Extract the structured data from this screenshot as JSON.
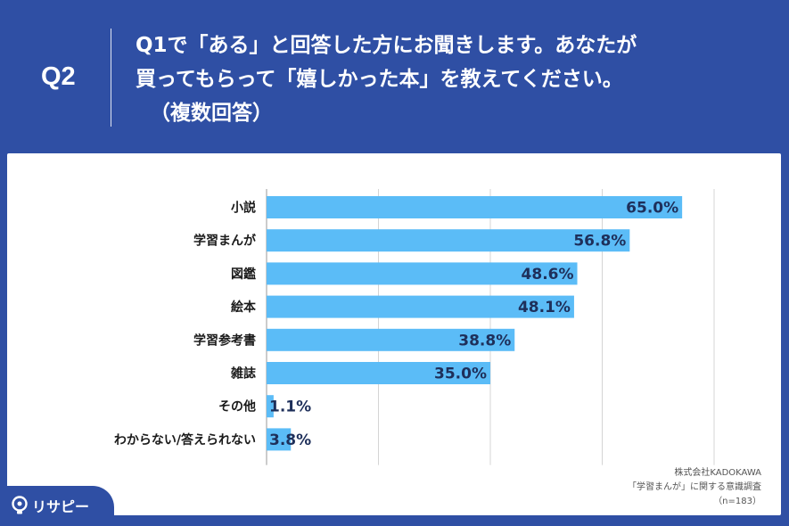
{
  "header": {
    "q_label": "Q2",
    "question_lines": [
      "Q1で「ある」と回答した方にお聞きします。あなたが",
      "買ってもらって「嬉しかった本」を教えてください。",
      "（複数回答）"
    ]
  },
  "chart_data": {
    "type": "bar",
    "orientation": "horizontal",
    "categories": [
      "小説",
      "学習まんが",
      "図鑑",
      "絵本",
      "学習参考書",
      "雑誌",
      "その他",
      "わからない/答えられない"
    ],
    "values": [
      65.0,
      56.8,
      48.6,
      48.1,
      38.8,
      35.0,
      1.1,
      3.8
    ],
    "value_labels": [
      "65.0%",
      "56.8%",
      "48.6%",
      "48.1%",
      "38.8%",
      "35.0%",
      "1.1%",
      "3.8%"
    ],
    "xlim": [
      0,
      70
    ],
    "gridlines": [
      0,
      17.5,
      35,
      52.5,
      70
    ],
    "bar_color": "#5bbcf7",
    "label_color": "#1e2f5a",
    "grid": true,
    "legend": "none"
  },
  "credit": {
    "company": "株式会社KADOKAWA",
    "survey": "「学習まんが」に関する意識調査",
    "n": "（n=183）"
  },
  "brand": {
    "name": "リサピー",
    "icon": "lightbulb-icon"
  },
  "colors": {
    "background": "#2f4fa4",
    "panel": "#ffffff",
    "bar": "#5bbcf7"
  }
}
